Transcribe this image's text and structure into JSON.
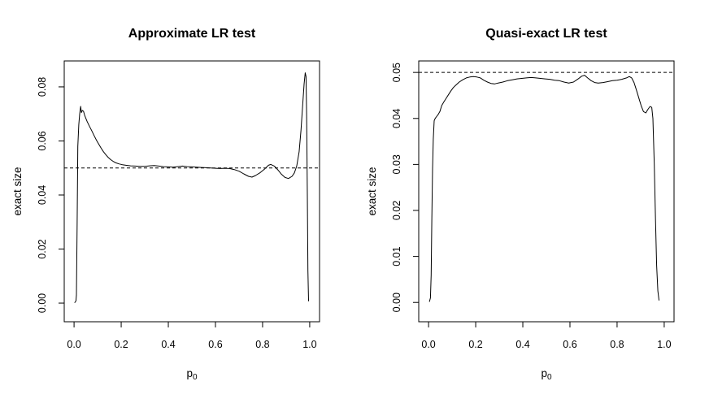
{
  "figure": {
    "background": "#ffffff",
    "foreground": "#000000"
  },
  "chart_data": [
    {
      "type": "line",
      "title": "Approximate LR test",
      "xlabel": {
        "base": "p",
        "sub": "0"
      },
      "ylabel": "exact size",
      "x_ticks": [
        "0.0",
        "0.2",
        "0.4",
        "0.6",
        "0.8",
        "1.0"
      ],
      "x_tick_values": [
        0.0,
        0.2,
        0.4,
        0.6,
        0.8,
        1.0
      ],
      "y_ticks": [
        "0.00",
        "0.02",
        "0.04",
        "0.06",
        "0.08"
      ],
      "y_tick_values": [
        0.0,
        0.02,
        0.04,
        0.06,
        0.08
      ],
      "xlim": [
        -0.0417,
        1.0417
      ],
      "ylim": [
        -0.0069,
        0.0896
      ],
      "grid": false,
      "reference_line": {
        "y": 0.05,
        "style": "dashed"
      },
      "line_color": "#000000",
      "series": [
        {
          "name": "exact size",
          "x": [
            0.003,
            0.008,
            0.01,
            0.013,
            0.016,
            0.02,
            0.024,
            0.028,
            0.031,
            0.035,
            0.04,
            0.045,
            0.055,
            0.065,
            0.075,
            0.085,
            0.095,
            0.105,
            0.115,
            0.125,
            0.135,
            0.145,
            0.155,
            0.165,
            0.175,
            0.19,
            0.205,
            0.22,
            0.24,
            0.26,
            0.28,
            0.3,
            0.32,
            0.34,
            0.36,
            0.38,
            0.4,
            0.42,
            0.44,
            0.46,
            0.48,
            0.5,
            0.52,
            0.54,
            0.56,
            0.58,
            0.6,
            0.62,
            0.64,
            0.66,
            0.68,
            0.7,
            0.72,
            0.74,
            0.755,
            0.77,
            0.79,
            0.81,
            0.825,
            0.835,
            0.85,
            0.865,
            0.88,
            0.895,
            0.91,
            0.925,
            0.935,
            0.945,
            0.955,
            0.963,
            0.97,
            0.976,
            0.981,
            0.9845,
            0.987,
            0.99,
            0.9925,
            0.995
          ],
          "y": [
            0.0002,
            0.0008,
            0.003,
            0.03,
            0.058,
            0.066,
            0.07,
            0.0728,
            0.0705,
            0.0713,
            0.071,
            0.0695,
            0.0673,
            0.0655,
            0.0638,
            0.062,
            0.0603,
            0.0588,
            0.0573,
            0.056,
            0.0549,
            0.0539,
            0.0531,
            0.0525,
            0.052,
            0.0515,
            0.0512,
            0.051,
            0.0508,
            0.0507,
            0.0506,
            0.0506,
            0.0508,
            0.0509,
            0.0507,
            0.0505,
            0.0504,
            0.0503,
            0.0505,
            0.0507,
            0.0505,
            0.0504,
            0.0503,
            0.0502,
            0.0501,
            0.05,
            0.0499,
            0.0498,
            0.0499,
            0.0498,
            0.0494,
            0.0488,
            0.0478,
            0.0469,
            0.0466,
            0.0472,
            0.0483,
            0.0497,
            0.051,
            0.0513,
            0.0507,
            0.0493,
            0.0477,
            0.0465,
            0.0461,
            0.0469,
            0.0482,
            0.0508,
            0.056,
            0.064,
            0.073,
            0.081,
            0.0852,
            0.0838,
            0.07,
            0.04,
            0.012,
            0.0008
          ]
        }
      ]
    },
    {
      "type": "line",
      "title": "Quasi-exact LR test",
      "xlabel": {
        "base": "p",
        "sub": "0"
      },
      "ylabel": "exact size",
      "x_ticks": [
        "0.0",
        "0.2",
        "0.4",
        "0.6",
        "0.8",
        "1.0"
      ],
      "x_tick_values": [
        0.0,
        0.2,
        0.4,
        0.6,
        0.8,
        1.0
      ],
      "y_ticks": [
        "0.00",
        "0.01",
        "0.02",
        "0.03",
        "0.04",
        "0.05"
      ],
      "y_tick_values": [
        0.0,
        0.01,
        0.02,
        0.03,
        0.04,
        0.05
      ],
      "xlim": [
        -0.0417,
        1.0417
      ],
      "ylim": [
        -0.0042,
        0.0525
      ],
      "grid": false,
      "reference_line": {
        "y": 0.05,
        "style": "dashed"
      },
      "line_color": "#000000",
      "series": [
        {
          "name": "exact size",
          "x": [
            0.004,
            0.008,
            0.011,
            0.014,
            0.017,
            0.02,
            0.024,
            0.028,
            0.034,
            0.04,
            0.048,
            0.056,
            0.065,
            0.075,
            0.085,
            0.095,
            0.105,
            0.115,
            0.13,
            0.145,
            0.16,
            0.175,
            0.19,
            0.205,
            0.22,
            0.235,
            0.25,
            0.265,
            0.28,
            0.295,
            0.315,
            0.335,
            0.355,
            0.375,
            0.395,
            0.415,
            0.435,
            0.455,
            0.475,
            0.495,
            0.515,
            0.535,
            0.555,
            0.575,
            0.595,
            0.615,
            0.635,
            0.65,
            0.662,
            0.675,
            0.69,
            0.705,
            0.72,
            0.74,
            0.76,
            0.78,
            0.8,
            0.82,
            0.84,
            0.852,
            0.862,
            0.872,
            0.882,
            0.892,
            0.902,
            0.912,
            0.922,
            0.93,
            0.94,
            0.947,
            0.952,
            0.958,
            0.963,
            0.968,
            0.973,
            0.978
          ],
          "y": [
            0.0002,
            0.001,
            0.006,
            0.018,
            0.029,
            0.0355,
            0.0395,
            0.04,
            0.0404,
            0.0408,
            0.0415,
            0.0428,
            0.0436,
            0.0444,
            0.0452,
            0.046,
            0.0467,
            0.0472,
            0.0479,
            0.0484,
            0.0488,
            0.049,
            0.0491,
            0.049,
            0.0488,
            0.0483,
            0.0479,
            0.0476,
            0.0475,
            0.0477,
            0.0479,
            0.0482,
            0.0484,
            0.0486,
            0.0487,
            0.0488,
            0.0489,
            0.0488,
            0.0487,
            0.0486,
            0.0485,
            0.0483,
            0.0482,
            0.0479,
            0.0477,
            0.0479,
            0.0486,
            0.0492,
            0.0494,
            0.0488,
            0.0482,
            0.0478,
            0.0477,
            0.0478,
            0.048,
            0.0482,
            0.0483,
            0.0485,
            0.0488,
            0.0491,
            0.0488,
            0.0478,
            0.0462,
            0.0445,
            0.0428,
            0.0415,
            0.0412,
            0.0419,
            0.0426,
            0.0424,
            0.04,
            0.03,
            0.018,
            0.008,
            0.0025,
            0.0005
          ]
        }
      ]
    }
  ]
}
